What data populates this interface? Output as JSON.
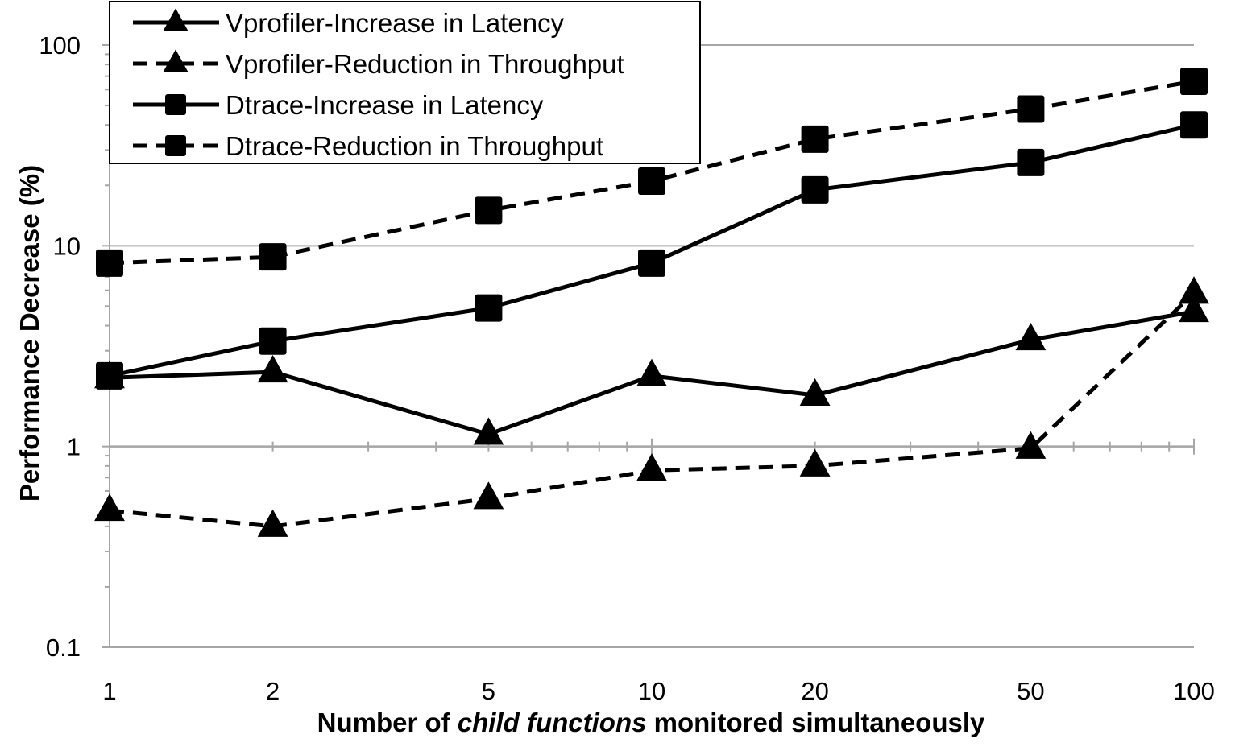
{
  "chart_data": {
    "type": "line",
    "title": "",
    "xlabel_parts": [
      {
        "text": "Number of ",
        "italic": false
      },
      {
        "text": "child functions",
        "italic": true
      },
      {
        "text": " monitored simultaneously",
        "italic": false
      }
    ],
    "ylabel": "Performance Decrease (%)",
    "x_scale": "log",
    "y_scale": "log",
    "x": [
      1,
      2,
      5,
      10,
      20,
      50,
      100
    ],
    "x_tick_labels": [
      "1",
      "2",
      "5",
      "10",
      "20",
      "50",
      "100"
    ],
    "y_ticks": [
      0.1,
      1,
      10,
      100
    ],
    "y_tick_labels": [
      "0.1",
      "1",
      "10",
      "100"
    ],
    "xlim": [
      1,
      100
    ],
    "ylim": [
      0.1,
      100
    ],
    "grid": "horizontal major",
    "legend_position": "top-left",
    "series": [
      {
        "name": "Vprofiler-Increase in Latency",
        "marker": "triangle",
        "dash": "solid",
        "values": [
          2.2,
          2.35,
          1.15,
          2.25,
          1.8,
          3.4,
          4.7
        ]
      },
      {
        "name": "Vprofiler-Reduction in Throughput",
        "marker": "triangle",
        "dash": "dashed",
        "values": [
          0.48,
          0.4,
          0.55,
          0.76,
          0.8,
          0.98,
          5.8
        ]
      },
      {
        "name": "Dtrace-Increase in Latency",
        "marker": "square",
        "dash": "solid",
        "values": [
          2.25,
          3.35,
          4.9,
          8.2,
          19,
          26,
          40
        ]
      },
      {
        "name": "Dtrace-Reduction in Throughput",
        "marker": "square",
        "dash": "dashed",
        "values": [
          8.2,
          8.8,
          15,
          21,
          34,
          48,
          66
        ]
      }
    ]
  }
}
